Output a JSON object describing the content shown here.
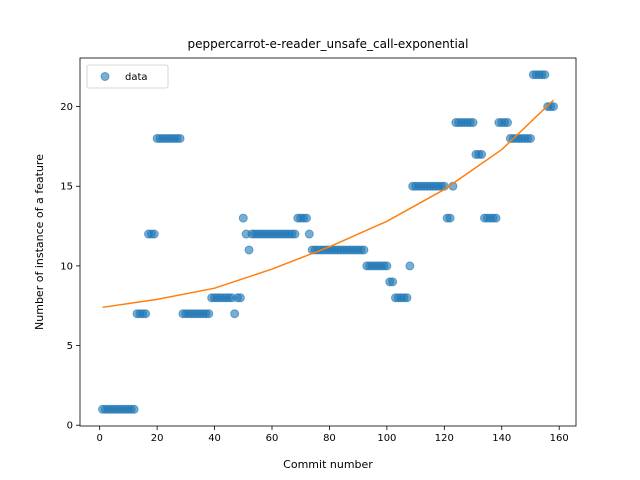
{
  "chart_data": {
    "type": "scatter",
    "title": "peppercarrot-e-reader_unsafe_call-exponential",
    "xlabel": "Commit number",
    "ylabel": "Number of instance of a feature",
    "xlim": [
      -6.85,
      165.85
    ],
    "ylim": [
      -0.05,
      23.05
    ],
    "xticks": [
      0,
      20,
      40,
      60,
      80,
      100,
      120,
      140,
      160
    ],
    "yticks": [
      0,
      5,
      10,
      15,
      20
    ],
    "legend": "upper left",
    "series": [
      {
        "name": "data",
        "color": "#1f77b4",
        "x": [
          1,
          2,
          3,
          4,
          5,
          6,
          7,
          8,
          9,
          10,
          11,
          12,
          13,
          14,
          15,
          16,
          17,
          18,
          19,
          20,
          21,
          22,
          23,
          24,
          25,
          26,
          27,
          28,
          29,
          30,
          31,
          32,
          33,
          34,
          35,
          36,
          37,
          38,
          39,
          40,
          41,
          42,
          43,
          44,
          45,
          46,
          47,
          48,
          49,
          50,
          51,
          52,
          53,
          54,
          55,
          56,
          57,
          58,
          59,
          60,
          61,
          62,
          63,
          64,
          65,
          66,
          67,
          68,
          69,
          70,
          71,
          72,
          73,
          74,
          75,
          76,
          77,
          78,
          79,
          80,
          81,
          82,
          83,
          84,
          85,
          86,
          87,
          88,
          89,
          90,
          91,
          92,
          93,
          94,
          95,
          96,
          97,
          98,
          99,
          100,
          101,
          102,
          103,
          104,
          105,
          106,
          107,
          108,
          109,
          110,
          111,
          112,
          113,
          114,
          115,
          116,
          117,
          118,
          119,
          120,
          121,
          122,
          123,
          124,
          125,
          126,
          127,
          128,
          129,
          130,
          131,
          132,
          133,
          134,
          135,
          136,
          137,
          138,
          139,
          140,
          141,
          142,
          143,
          144,
          145,
          146,
          147,
          148,
          149,
          150,
          151,
          152,
          153,
          154,
          155,
          156,
          157,
          158
        ],
        "values": [
          1,
          1,
          1,
          1,
          1,
          1,
          1,
          1,
          1,
          1,
          1,
          1,
          7,
          7,
          7,
          7,
          12,
          12,
          12,
          18,
          18,
          18,
          18,
          18,
          18,
          18,
          18,
          18,
          7,
          7,
          7,
          7,
          7,
          7,
          7,
          7,
          7,
          7,
          8,
          8,
          8,
          8,
          8,
          8,
          8,
          8,
          7,
          8,
          8,
          13,
          12,
          11,
          12,
          12,
          12,
          12,
          12,
          12,
          12,
          12,
          12,
          12,
          12,
          12,
          12,
          12,
          12,
          12,
          13,
          13,
          13,
          13,
          12,
          11,
          11,
          11,
          11,
          11,
          11,
          11,
          11,
          11,
          11,
          11,
          11,
          11,
          11,
          11,
          11,
          11,
          11,
          11,
          10,
          10,
          10,
          10,
          10,
          10,
          10,
          10,
          9,
          9,
          8,
          8,
          8,
          8,
          8,
          10,
          15,
          15,
          15,
          15,
          15,
          15,
          15,
          15,
          15,
          15,
          15,
          15,
          13,
          13,
          15,
          19,
          19,
          19,
          19,
          19,
          19,
          19,
          17,
          17,
          17,
          13,
          13,
          13,
          13,
          13,
          19,
          19,
          19,
          19,
          18,
          18,
          18,
          18,
          18,
          18,
          18,
          18,
          22,
          22,
          22,
          22,
          22,
          20,
          20,
          20
        ]
      }
    ],
    "fit": {
      "color": "#ff7f0e",
      "x": [
        1,
        20,
        40,
        60,
        80,
        100,
        120,
        140,
        158
      ],
      "values": [
        7.4,
        7.9,
        8.6,
        9.8,
        11.2,
        12.8,
        14.8,
        17.3,
        20.4
      ]
    }
  }
}
